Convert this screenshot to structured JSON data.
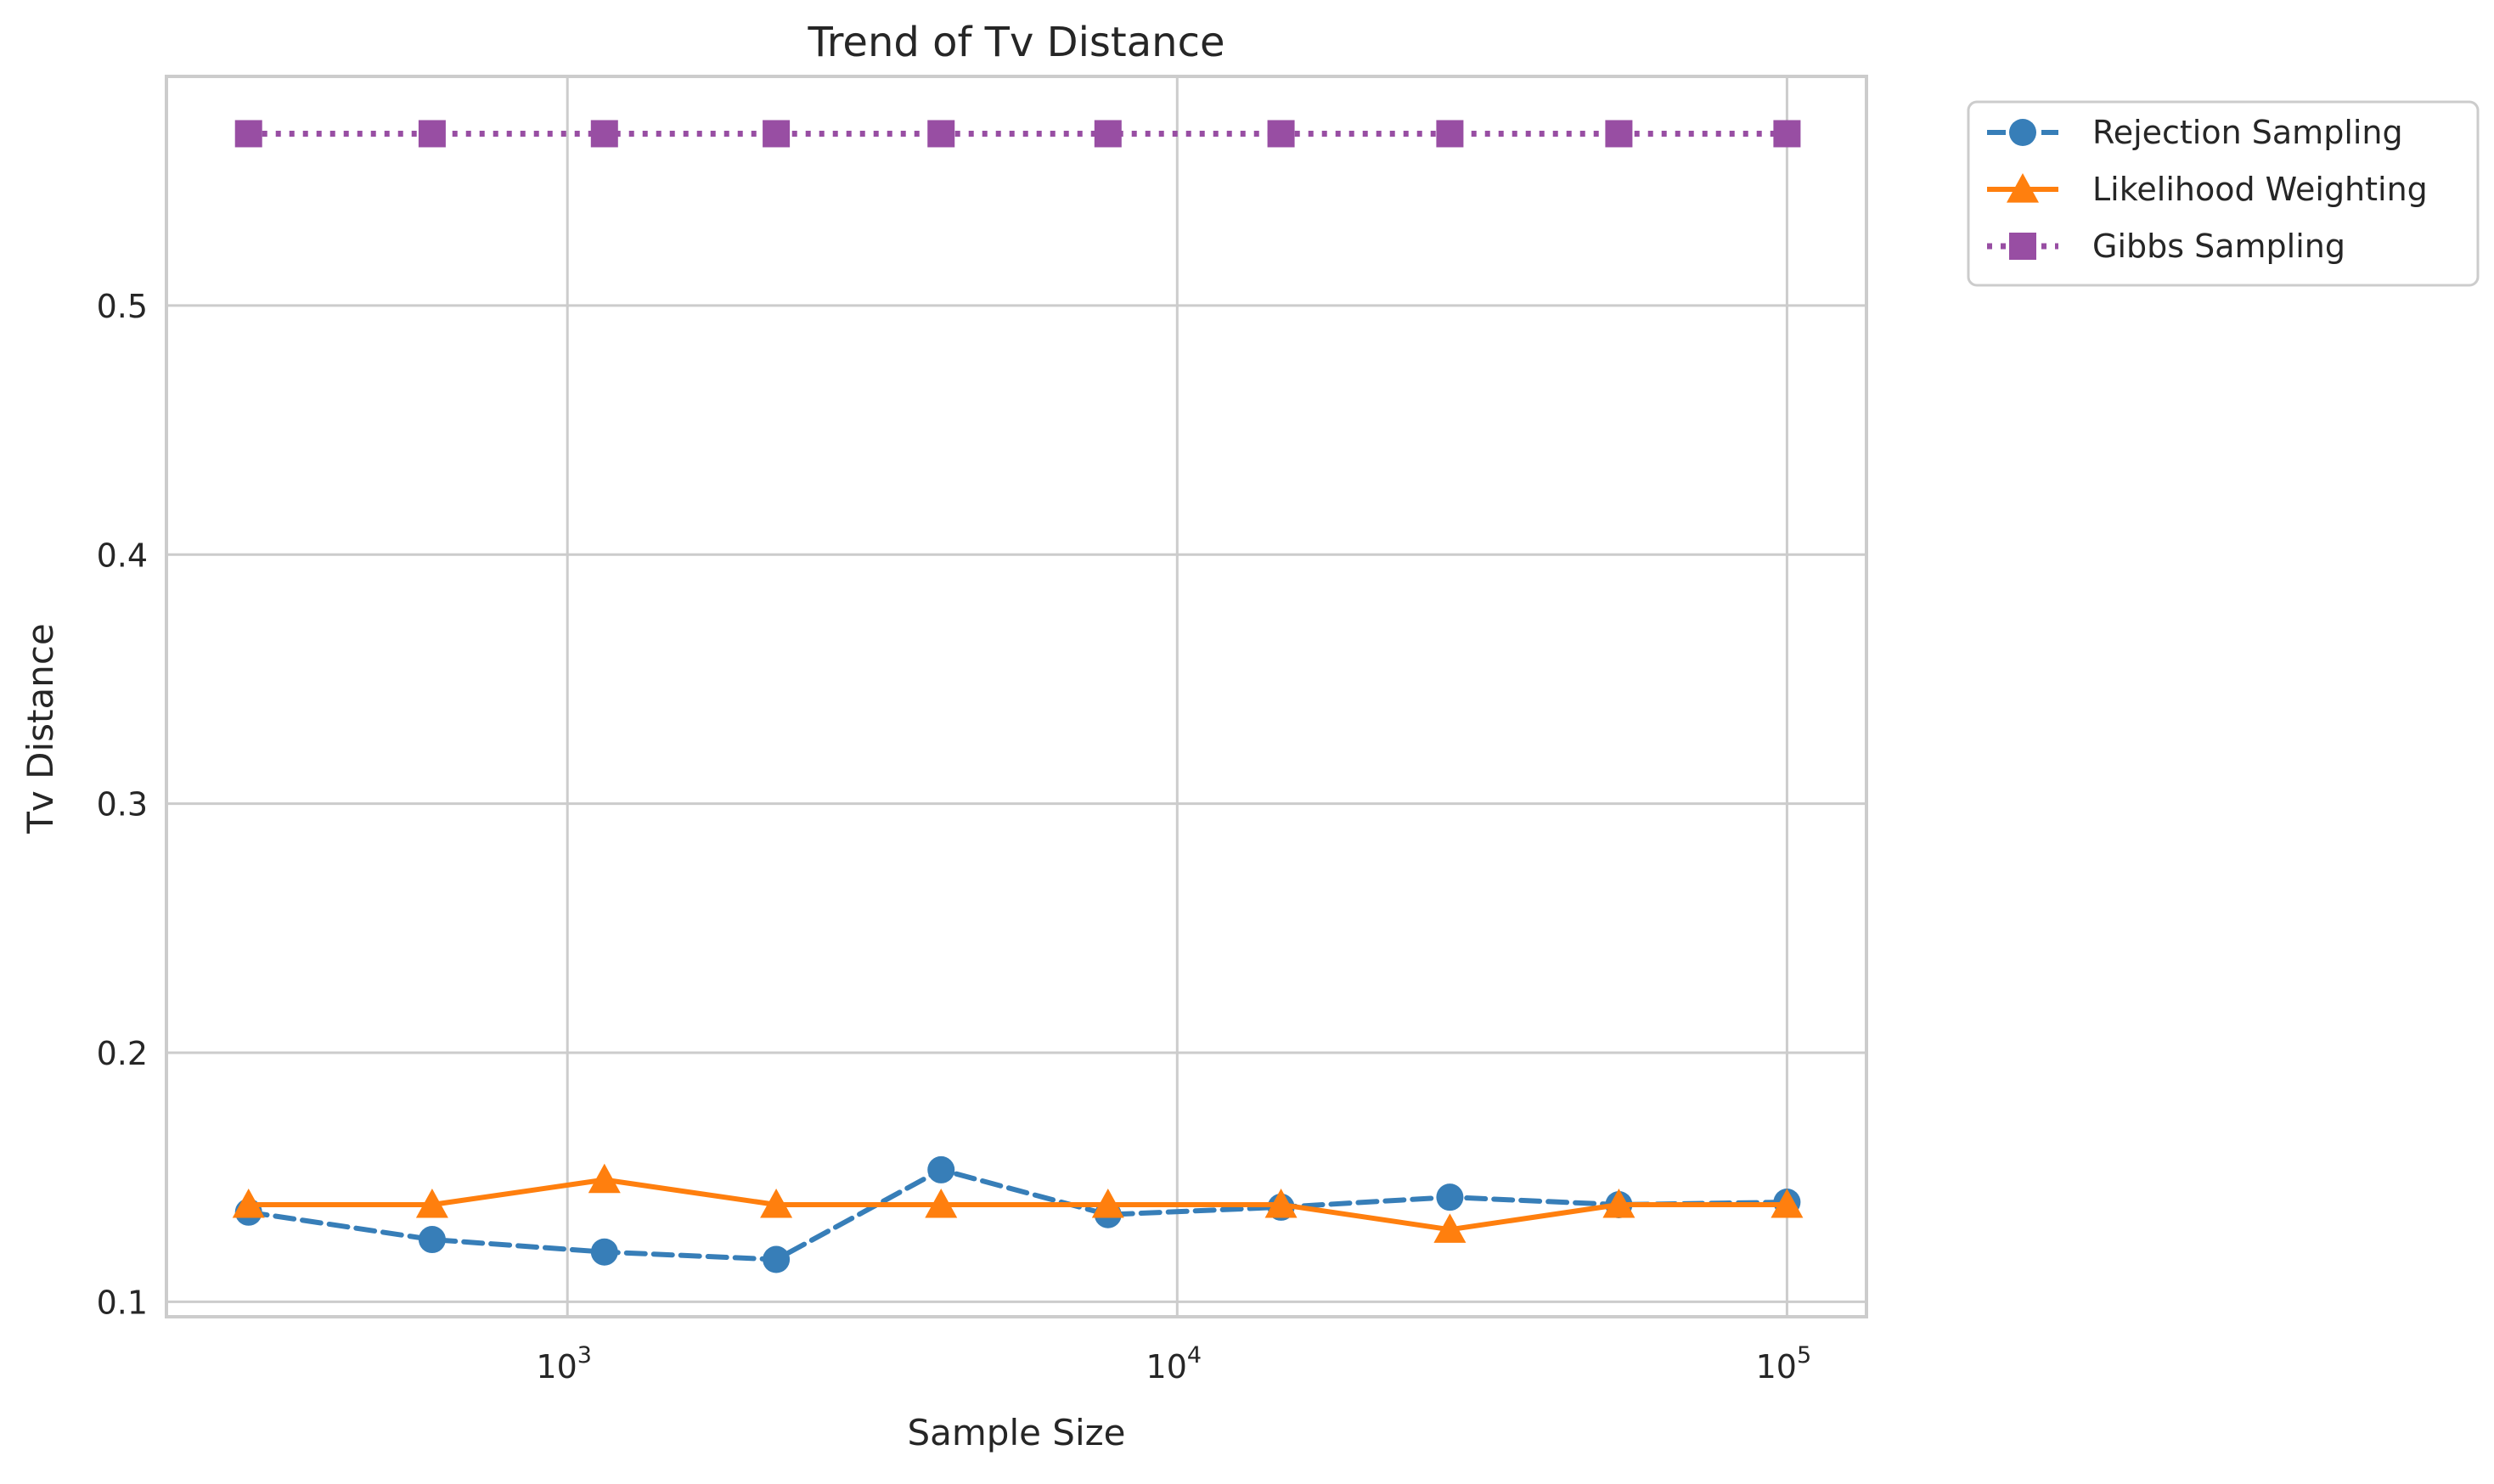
{
  "chart_data": {
    "type": "line",
    "title": "Trend of Tv Distance",
    "xlabel": "Sample Size",
    "ylabel": "Tv Distance",
    "xscale": "log",
    "x": [
      300,
      600,
      1150,
      2200,
      4100,
      7700,
      14800,
      28000,
      53000,
      100000
    ],
    "xlim": [
      220,
      135000
    ],
    "ylim": [
      0.094,
      0.592
    ],
    "xticks": [
      {
        "value": 1000,
        "base": "10",
        "exp": "3"
      },
      {
        "value": 10000,
        "base": "10",
        "exp": "4"
      },
      {
        "value": 100000,
        "base": "10",
        "exp": "5"
      }
    ],
    "yticks": [
      {
        "value": 0.1,
        "label": "0.1"
      },
      {
        "value": 0.2,
        "label": "0.2"
      },
      {
        "value": 0.3,
        "label": "0.3"
      },
      {
        "value": 0.4,
        "label": "0.4"
      },
      {
        "value": 0.5,
        "label": "0.5"
      }
    ],
    "grid": true,
    "legend_position": "outside-top-right",
    "series": [
      {
        "name": "Rejection Sampling",
        "color": "#377eb8",
        "linestyle": "dashed",
        "marker": "circle",
        "values": [
          0.136,
          0.125,
          0.12,
          0.117,
          0.153,
          0.135,
          0.138,
          0.142,
          0.139,
          0.14
        ]
      },
      {
        "name": "Likelihood Weighting",
        "color": "#ff7f0e",
        "linestyle": "solid",
        "marker": "triangle",
        "values": [
          0.139,
          0.139,
          0.149,
          0.139,
          0.139,
          0.139,
          0.139,
          0.129,
          0.139,
          0.139
        ]
      },
      {
        "name": "Gibbs Sampling",
        "color": "#984ea3",
        "linestyle": "dotted",
        "marker": "square",
        "values": [
          0.569,
          0.569,
          0.569,
          0.569,
          0.569,
          0.569,
          0.569,
          0.569,
          0.569,
          0.569
        ]
      }
    ]
  }
}
